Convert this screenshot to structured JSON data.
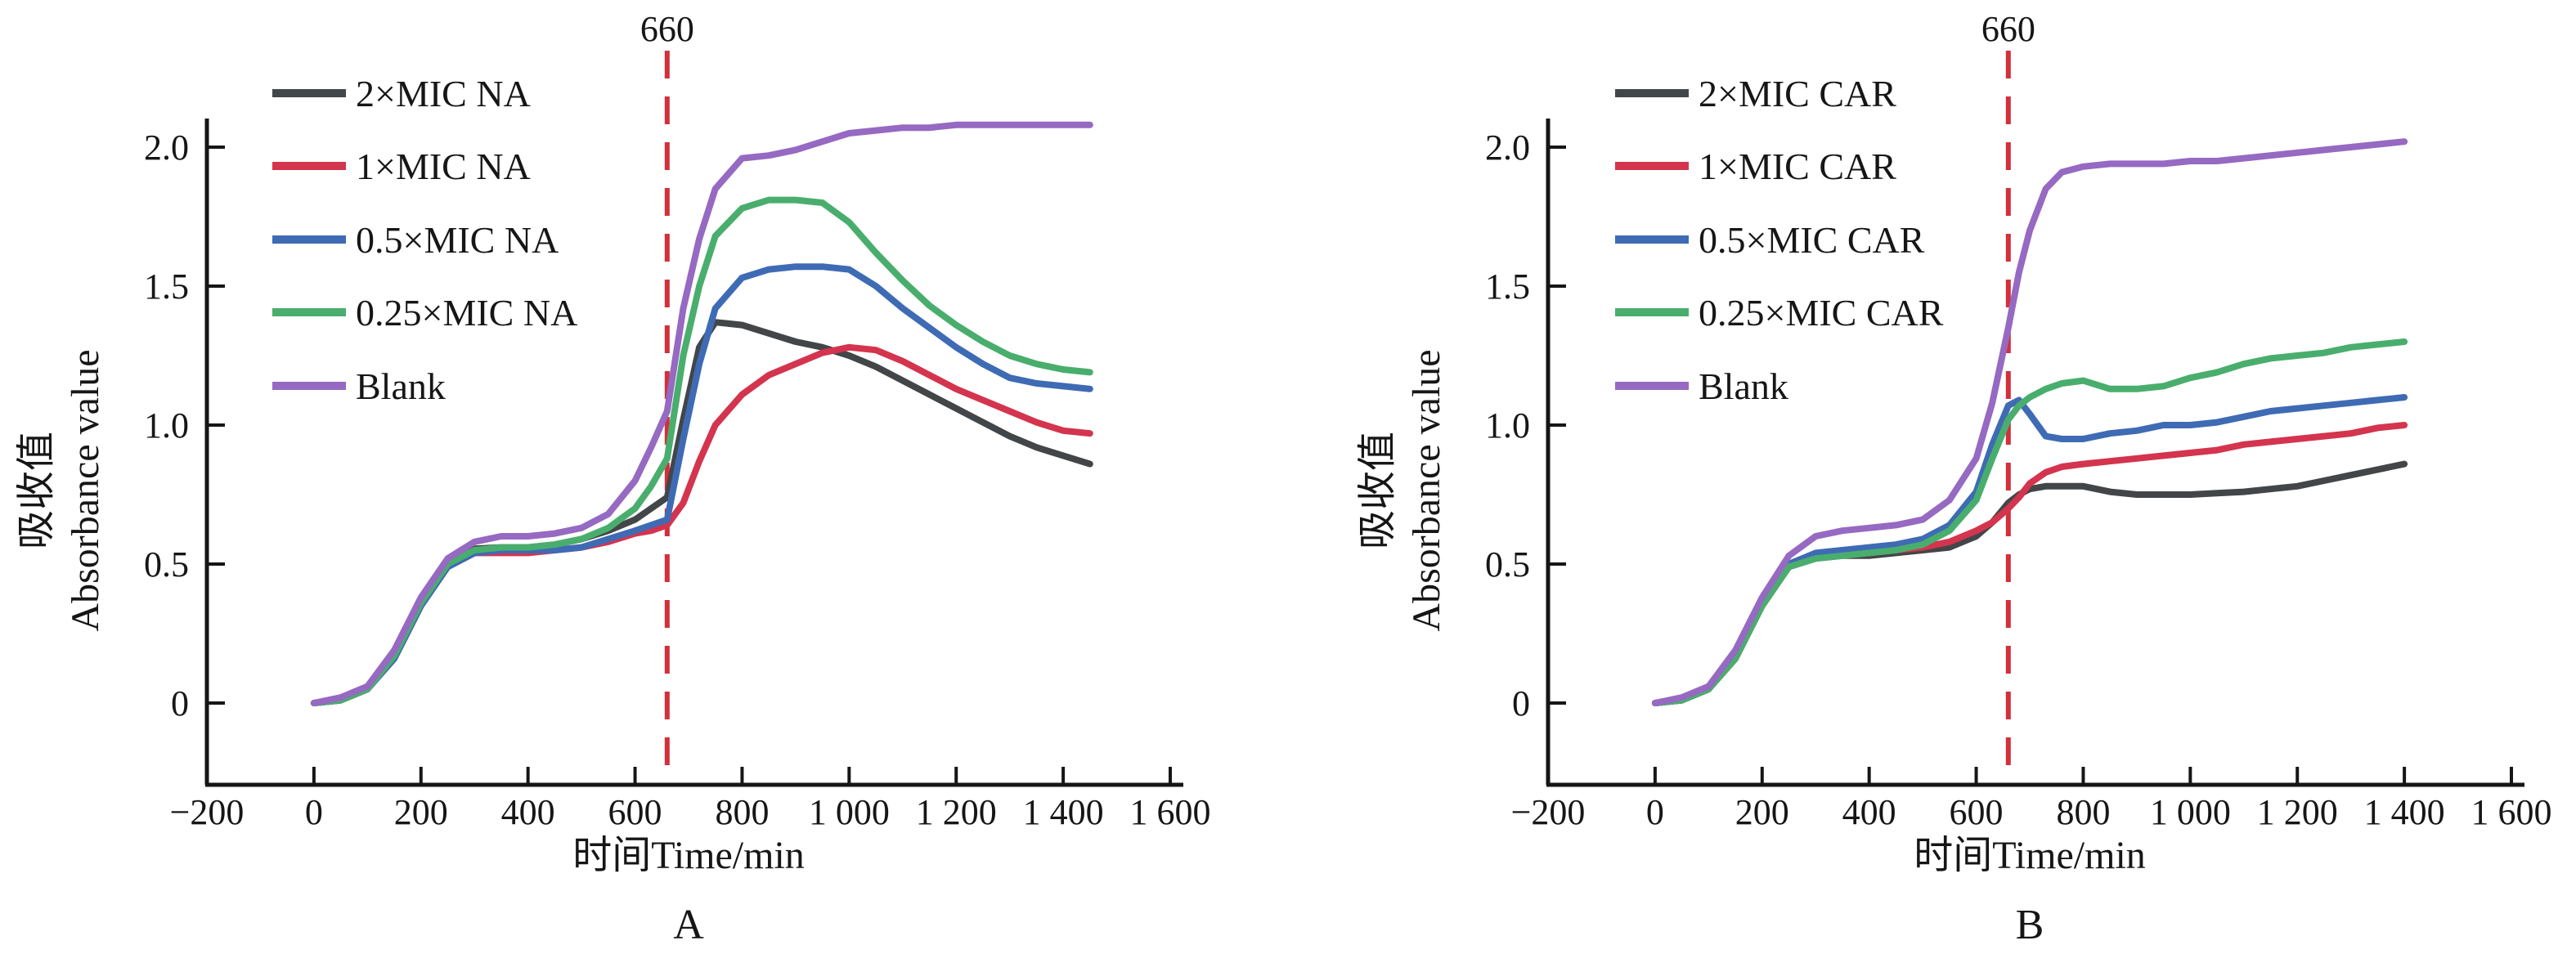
{
  "figure_title": "",
  "threshold": {
    "label": "660",
    "x": 660,
    "color": "#d2303c",
    "style": "dashed"
  },
  "colors": {
    "series_gray": "#434649",
    "series_red": "#d4344e",
    "series_blue": "#3e6bb4",
    "series_green": "#49ae6d",
    "series_purple": "#9669c2",
    "axis": "#161616",
    "threshold_red": "#d2303c"
  },
  "chart_data": [
    {
      "type": "line",
      "panel_label": "A",
      "threshold_label": "660",
      "threshold_x": 660,
      "xlabel": "时间Time/min",
      "ylabel_cn": "吸收值",
      "ylabel_en": "Absorbance value",
      "xlim": [
        -200,
        1600
      ],
      "ylim": [
        0,
        2.0
      ],
      "grid": false,
      "legend_position": "upper-left-inside",
      "x_tick_values": [
        -200,
        0,
        200,
        400,
        600,
        800,
        1000,
        1200,
        1400,
        1600
      ],
      "x_tick_labels": [
        "−200",
        "0",
        "200",
        "400",
        "600",
        "800",
        "1 000",
        "1 200",
        "1 400",
        "1 600"
      ],
      "y_tick_values": [
        0,
        0.5,
        1.0,
        1.5,
        2.0
      ],
      "y_tick_labels": [
        "0",
        "0.5",
        "1.0",
        "1.5",
        "2.0"
      ],
      "x": [
        0,
        50,
        100,
        150,
        200,
        250,
        300,
        350,
        400,
        450,
        500,
        550,
        600,
        630,
        660,
        690,
        720,
        750,
        800,
        850,
        900,
        950,
        1000,
        1050,
        1100,
        1150,
        1200,
        1250,
        1300,
        1350,
        1400,
        1450
      ],
      "series": [
        {
          "name": "2×MIC NA",
          "color": "#434649",
          "values": [
            0.0,
            0.01,
            0.05,
            0.17,
            0.36,
            0.5,
            0.555,
            0.56,
            0.56,
            0.57,
            0.59,
            0.62,
            0.66,
            0.7,
            0.74,
            1.02,
            1.28,
            1.37,
            1.36,
            1.33,
            1.3,
            1.28,
            1.25,
            1.21,
            1.16,
            1.11,
            1.06,
            1.01,
            0.96,
            0.92,
            0.89,
            0.86
          ]
        },
        {
          "name": "1×MIC NA",
          "color": "#d4344e",
          "values": [
            0.0,
            0.01,
            0.05,
            0.16,
            0.35,
            0.49,
            0.54,
            0.54,
            0.54,
            0.55,
            0.56,
            0.58,
            0.61,
            0.62,
            0.64,
            0.72,
            0.87,
            1.0,
            1.11,
            1.18,
            1.22,
            1.26,
            1.28,
            1.27,
            1.23,
            1.18,
            1.13,
            1.09,
            1.05,
            1.01,
            0.98,
            0.97
          ]
        },
        {
          "name": "0.5×MIC NA",
          "color": "#3e6bb4",
          "values": [
            0.0,
            0.01,
            0.05,
            0.16,
            0.35,
            0.49,
            0.54,
            0.55,
            0.55,
            0.55,
            0.56,
            0.59,
            0.62,
            0.64,
            0.66,
            0.95,
            1.22,
            1.42,
            1.53,
            1.56,
            1.57,
            1.57,
            1.56,
            1.5,
            1.42,
            1.35,
            1.28,
            1.22,
            1.17,
            1.15,
            1.14,
            1.13
          ]
        },
        {
          "name": "0.25×MIC NA",
          "color": "#49ae6d",
          "values": [
            0.0,
            0.01,
            0.05,
            0.17,
            0.36,
            0.5,
            0.55,
            0.56,
            0.56,
            0.57,
            0.59,
            0.63,
            0.7,
            0.78,
            0.88,
            1.25,
            1.5,
            1.68,
            1.78,
            1.81,
            1.81,
            1.8,
            1.73,
            1.62,
            1.52,
            1.43,
            1.36,
            1.3,
            1.25,
            1.22,
            1.2,
            1.19
          ]
        },
        {
          "name": "Blank",
          "color": "#9669c2",
          "values": [
            0.0,
            0.02,
            0.06,
            0.19,
            0.38,
            0.52,
            0.58,
            0.6,
            0.6,
            0.61,
            0.63,
            0.68,
            0.8,
            0.92,
            1.05,
            1.42,
            1.67,
            1.85,
            1.96,
            1.97,
            1.99,
            2.02,
            2.05,
            2.06,
            2.07,
            2.07,
            2.08,
            2.08,
            2.08,
            2.08,
            2.08,
            2.08
          ]
        }
      ]
    },
    {
      "type": "line",
      "panel_label": "B",
      "threshold_label": "660",
      "threshold_x": 660,
      "xlabel": "时间Time/min",
      "ylabel_cn": "吸收值",
      "ylabel_en": "Absorbance value",
      "xlim": [
        -200,
        1600
      ],
      "ylim": [
        0,
        2.0
      ],
      "grid": false,
      "legend_position": "upper-left-inside",
      "x_tick_values": [
        -200,
        0,
        200,
        400,
        600,
        800,
        1000,
        1200,
        1400,
        1600
      ],
      "x_tick_labels": [
        "−200",
        "0",
        "200",
        "400",
        "600",
        "800",
        "1 000",
        "1 200",
        "1 400",
        "1 600"
      ],
      "y_tick_values": [
        0,
        0.5,
        1.0,
        1.5,
        2.0
      ],
      "y_tick_labels": [
        "0",
        "0.5",
        "1.0",
        "1.5",
        "2.0"
      ],
      "x": [
        0,
        50,
        100,
        150,
        200,
        250,
        300,
        350,
        400,
        450,
        500,
        550,
        600,
        630,
        660,
        680,
        700,
        730,
        760,
        800,
        850,
        900,
        950,
        1000,
        1050,
        1100,
        1150,
        1200,
        1250,
        1300,
        1350,
        1400
      ],
      "series": [
        {
          "name": "2×MIC CAR",
          "color": "#434649",
          "values": [
            0.0,
            0.01,
            0.05,
            0.16,
            0.35,
            0.49,
            0.52,
            0.53,
            0.53,
            0.54,
            0.55,
            0.56,
            0.6,
            0.65,
            0.72,
            0.75,
            0.77,
            0.78,
            0.78,
            0.78,
            0.76,
            0.75,
            0.75,
            0.75,
            0.755,
            0.76,
            0.77,
            0.78,
            0.8,
            0.82,
            0.84,
            0.86
          ]
        },
        {
          "name": "1×MIC CAR",
          "color": "#d4344e",
          "values": [
            0.0,
            0.01,
            0.05,
            0.16,
            0.35,
            0.49,
            0.53,
            0.54,
            0.54,
            0.55,
            0.56,
            0.58,
            0.62,
            0.65,
            0.7,
            0.74,
            0.79,
            0.83,
            0.85,
            0.86,
            0.87,
            0.88,
            0.89,
            0.9,
            0.91,
            0.93,
            0.94,
            0.95,
            0.96,
            0.97,
            0.99,
            1.0
          ]
        },
        {
          "name": "0.5×MIC CAR",
          "color": "#3e6bb4",
          "values": [
            0.0,
            0.01,
            0.05,
            0.17,
            0.36,
            0.5,
            0.54,
            0.55,
            0.56,
            0.57,
            0.59,
            0.64,
            0.76,
            0.93,
            1.07,
            1.09,
            1.04,
            0.96,
            0.95,
            0.95,
            0.97,
            0.98,
            1.0,
            1.0,
            1.01,
            1.03,
            1.05,
            1.06,
            1.07,
            1.08,
            1.09,
            1.1
          ]
        },
        {
          "name": "0.25×MIC CAR",
          "color": "#49ae6d",
          "values": [
            0.0,
            0.01,
            0.05,
            0.16,
            0.35,
            0.49,
            0.52,
            0.53,
            0.54,
            0.55,
            0.57,
            0.62,
            0.73,
            0.88,
            1.02,
            1.07,
            1.1,
            1.13,
            1.15,
            1.16,
            1.13,
            1.13,
            1.14,
            1.17,
            1.19,
            1.22,
            1.24,
            1.25,
            1.26,
            1.28,
            1.29,
            1.3
          ]
        },
        {
          "name": "Blank",
          "color": "#9669c2",
          "values": [
            0.0,
            0.02,
            0.06,
            0.19,
            0.38,
            0.53,
            0.6,
            0.62,
            0.63,
            0.64,
            0.66,
            0.73,
            0.88,
            1.08,
            1.35,
            1.55,
            1.7,
            1.85,
            1.91,
            1.93,
            1.94,
            1.94,
            1.94,
            1.95,
            1.95,
            1.96,
            1.97,
            1.98,
            1.99,
            2.0,
            2.01,
            2.02
          ]
        }
      ]
    }
  ]
}
